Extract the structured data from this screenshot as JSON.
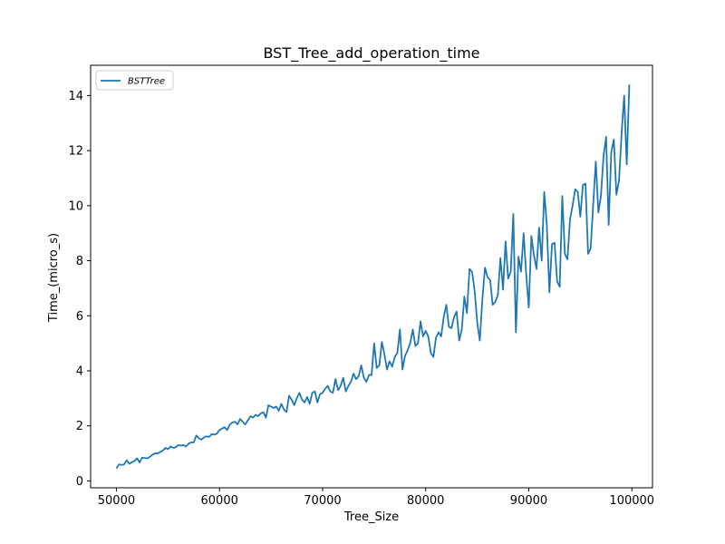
{
  "chart_data": {
    "type": "line",
    "title": "BST_Tree_add_operation_time",
    "xlabel": "Tree_Size",
    "ylabel": "Time_(micro_s)",
    "xlim": [
      47500,
      102000
    ],
    "ylim": [
      -0.25,
      15.1
    ],
    "xticks": [
      50000,
      60000,
      70000,
      80000,
      90000,
      100000
    ],
    "xtick_labels": [
      "50000",
      "60000",
      "70000",
      "80000",
      "90000",
      "100000"
    ],
    "yticks": [
      0,
      2,
      4,
      6,
      8,
      10,
      12,
      14
    ],
    "ytick_labels": [
      "0",
      "2",
      "4",
      "6",
      "8",
      "10",
      "12",
      "14"
    ],
    "grid": false,
    "legend": {
      "position": "top-left",
      "entries": [
        "BSTTree"
      ]
    },
    "series": [
      {
        "name": "BSTTree",
        "color": "#1f77b4",
        "x": [
          50000,
          50250,
          50500,
          50750,
          51000,
          51250,
          51500,
          51750,
          52000,
          52250,
          52500,
          52750,
          53000,
          53250,
          53500,
          53750,
          54000,
          54250,
          54500,
          54750,
          55000,
          55250,
          55500,
          55750,
          56000,
          56250,
          56500,
          56750,
          57000,
          57250,
          57500,
          57750,
          58000,
          58250,
          58500,
          58750,
          59000,
          59250,
          59500,
          59750,
          60000,
          60250,
          60500,
          60750,
          61000,
          61250,
          61500,
          61750,
          62000,
          62250,
          62500,
          62750,
          63000,
          63250,
          63500,
          63750,
          64000,
          64250,
          64500,
          64750,
          65000,
          65250,
          65500,
          65750,
          66000,
          66250,
          66500,
          66750,
          67000,
          67250,
          67500,
          67750,
          68000,
          68250,
          68500,
          68750,
          69000,
          69250,
          69500,
          69750,
          70000,
          70250,
          70500,
          70750,
          71000,
          71250,
          71500,
          71750,
          72000,
          72250,
          72500,
          72750,
          73000,
          73250,
          73500,
          73750,
          74000,
          74250,
          74500,
          74750,
          75000,
          75250,
          75500,
          75750,
          76000,
          76250,
          76500,
          76750,
          77000,
          77250,
          77500,
          77750,
          78000,
          78250,
          78500,
          78750,
          79000,
          79250,
          79500,
          79750,
          80000,
          80250,
          80500,
          80750,
          81000,
          81250,
          81500,
          81750,
          82000,
          82250,
          82500,
          82750,
          83000,
          83250,
          83500,
          83750,
          84000,
          84250,
          84500,
          84750,
          85000,
          85250,
          85500,
          85750,
          86000,
          86250,
          86500,
          86750,
          87000,
          87250,
          87500,
          87750,
          88000,
          88250,
          88500,
          88750,
          89000,
          89250,
          89500,
          89750,
          90000,
          90250,
          90500,
          90750,
          91000,
          91250,
          91500,
          91750,
          92000,
          92250,
          92500,
          92750,
          93000,
          93250,
          93500,
          93750,
          94000,
          94250,
          94500,
          94750,
          95000,
          95250,
          95500,
          95750,
          96000,
          96250,
          96500,
          96750,
          97000,
          97250,
          97500,
          97750,
          98000,
          98250,
          98500,
          98750,
          99000,
          99250,
          99500,
          99750
        ],
        "y": [
          0.45,
          0.6,
          0.58,
          0.6,
          0.75,
          0.62,
          0.68,
          0.72,
          0.82,
          0.67,
          0.85,
          0.83,
          0.82,
          0.88,
          0.95,
          1.0,
          1.0,
          1.05,
          1.1,
          1.2,
          1.15,
          1.25,
          1.2,
          1.22,
          1.3,
          1.28,
          1.3,
          1.25,
          1.35,
          1.4,
          1.4,
          1.65,
          1.55,
          1.5,
          1.58,
          1.62,
          1.6,
          1.7,
          1.68,
          1.72,
          1.85,
          1.9,
          1.95,
          1.85,
          2.05,
          2.12,
          2.15,
          2.05,
          2.25,
          2.15,
          2.05,
          2.2,
          2.35,
          2.3,
          2.4,
          2.35,
          2.45,
          2.5,
          2.3,
          2.75,
          2.7,
          2.65,
          2.7,
          2.55,
          2.8,
          2.6,
          2.5,
          3.1,
          2.95,
          2.75,
          3.0,
          3.2,
          2.95,
          2.85,
          3.05,
          2.8,
          3.2,
          3.25,
          2.85,
          3.15,
          3.2,
          3.35,
          3.45,
          3.25,
          3.2,
          3.7,
          3.3,
          3.45,
          3.75,
          3.25,
          3.45,
          3.6,
          3.9,
          3.7,
          3.8,
          4.2,
          3.75,
          3.6,
          3.85,
          3.85,
          5.0,
          4.1,
          4.2,
          5.05,
          4.6,
          4.05,
          4.35,
          4.15,
          4.5,
          4.65,
          5.5,
          4.05,
          4.55,
          4.75,
          5.0,
          5.5,
          4.9,
          5.0,
          5.8,
          5.25,
          5.45,
          5.25,
          4.65,
          4.5,
          5.2,
          5.4,
          5.25,
          5.95,
          6.4,
          5.6,
          5.55,
          5.95,
          6.15,
          5.1,
          5.5,
          6.7,
          6.1,
          7.7,
          7.6,
          6.9,
          5.75,
          5.1,
          6.6,
          7.75,
          7.4,
          7.3,
          6.4,
          6.5,
          6.75,
          8.1,
          6.95,
          8.7,
          7.35,
          7.6,
          9.7,
          5.4,
          8.15,
          7.6,
          9.0,
          7.5,
          6.3,
          8.9,
          8.2,
          7.7,
          9.2,
          8.0,
          10.5,
          9.3,
          6.85,
          8.6,
          8.65,
          7.25,
          7.05,
          10.35,
          8.25,
          8.05,
          9.5,
          10.0,
          10.6,
          10.5,
          9.6,
          10.75,
          10.8,
          8.25,
          8.45,
          10.05,
          11.6,
          9.75,
          10.35,
          11.8,
          12.5,
          9.3,
          11.95,
          12.4,
          10.4,
          10.9,
          12.6,
          14.0,
          11.5,
          14.4
        ]
      }
    ]
  }
}
